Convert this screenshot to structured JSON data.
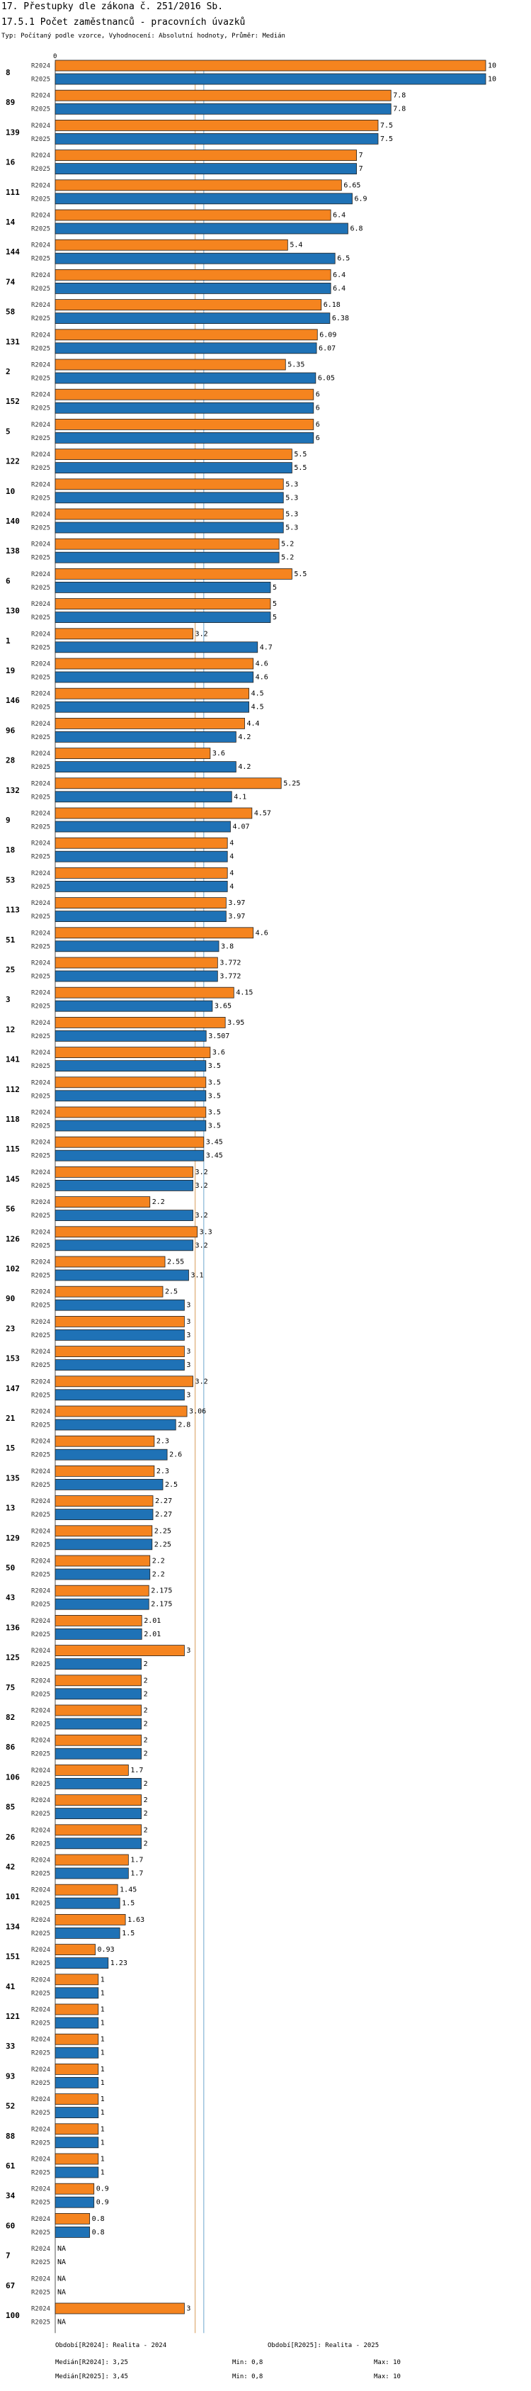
{
  "header": {
    "title_line1": "17. Přestupky dle zákona č. 251/2016 Sb.",
    "title_line2": "17.5.1 Počet zaměstnanců - pracovních úvazků",
    "subtitle": "Typ: Počítaný podle vzorce, Vyhodnocení: Absolutní hodnoty, Průměr: Medián"
  },
  "chart_data": {
    "type": "bar",
    "orientation": "horizontal",
    "axis_tick_label": "0",
    "xlim": [
      0,
      10
    ],
    "series_names": [
      "R2024",
      "R2025"
    ],
    "colors": {
      "R2024": "#f5841f",
      "R2025": "#1f72b6",
      "median_line_2024": "#e3b98b",
      "median_line_2025": "#9ec3de"
    },
    "medians": {
      "R2024": 3.25,
      "R2025": 3.45
    },
    "categories": [
      "8",
      "89",
      "139",
      "16",
      "111",
      "14",
      "144",
      "74",
      "58",
      "131",
      "2",
      "152",
      "5",
      "122",
      "10",
      "140",
      "138",
      "6",
      "130",
      "1",
      "19",
      "146",
      "96",
      "28",
      "132",
      "9",
      "18",
      "53",
      "113",
      "51",
      "25",
      "3",
      "12",
      "141",
      "112",
      "118",
      "115",
      "145",
      "56",
      "126",
      "102",
      "90",
      "23",
      "153",
      "147",
      "21",
      "15",
      "135",
      "13",
      "129",
      "50",
      "43",
      "136",
      "125",
      "75",
      "82",
      "86",
      "106",
      "85",
      "26",
      "42",
      "101",
      "134",
      "151",
      "41",
      "121",
      "33",
      "93",
      "52",
      "88",
      "61",
      "34",
      "60",
      "7",
      "67",
      "100"
    ],
    "series": [
      {
        "name": "R2024",
        "values": [
          10,
          7.8,
          7.5,
          7,
          6.65,
          6.4,
          5.4,
          6.4,
          6.18,
          6.09,
          5.35,
          6,
          6,
          5.5,
          5.3,
          5.3,
          5.2,
          5.5,
          5,
          3.2,
          4.6,
          4.5,
          4.4,
          3.6,
          5.25,
          4.57,
          4,
          4,
          3.97,
          4.6,
          3.772,
          4.15,
          3.95,
          3.6,
          3.5,
          3.5,
          3.45,
          3.2,
          2.2,
          3.3,
          2.55,
          2.5,
          3,
          3,
          3.2,
          3.06,
          2.3,
          2.3,
          2.27,
          2.25,
          2.2,
          2.175,
          2.01,
          3,
          2,
          2,
          2,
          1.7,
          2,
          2,
          1.7,
          1.45,
          1.63,
          0.93,
          1,
          1,
          1,
          1,
          1,
          1,
          1,
          0.9,
          0.8,
          null,
          null,
          3
        ],
        "labels": [
          "10",
          "7.8",
          "7.5",
          "7",
          "6.65",
          "6.4",
          "5.4",
          "6.4",
          "6.18",
          "6.09",
          "5.35",
          "6",
          "6",
          "5.5",
          "5.3",
          "5.3",
          "5.2",
          "5.5",
          "5",
          "3.2",
          "4.6",
          "4.5",
          "4.4",
          "3.6",
          "5.25",
          "4.57",
          "4",
          "4",
          "3.97",
          "4.6",
          "3.772",
          "4.15",
          "3.95",
          "3.6",
          "3.5",
          "3.5",
          "3.45",
          "3.2",
          "2.2",
          "3.3",
          "2.55",
          "2.5",
          "3",
          "3",
          "3.2",
          "3.06",
          "2.3",
          "2.3",
          "2.27",
          "2.25",
          "2.2",
          "2.175",
          "2.01",
          "3",
          "2",
          "2",
          "2",
          "1.7",
          "2",
          "2",
          "1.7",
          "1.45",
          "1.63",
          "0.93",
          "1",
          "1",
          "1",
          "1",
          "1",
          "1",
          "1",
          "0.9",
          "0.8",
          "NA",
          "NA",
          "3"
        ]
      },
      {
        "name": "R2025",
        "values": [
          10,
          7.8,
          7.5,
          7,
          6.9,
          6.8,
          6.5,
          6.4,
          6.38,
          6.07,
          6.05,
          6,
          6,
          5.5,
          5.3,
          5.3,
          5.2,
          5,
          5,
          4.7,
          4.6,
          4.5,
          4.2,
          4.2,
          4.1,
          4.07,
          4,
          4,
          3.97,
          3.8,
          3.772,
          3.65,
          3.507,
          3.5,
          3.5,
          3.5,
          3.45,
          3.2,
          3.2,
          3.2,
          3.1,
          3,
          3,
          3,
          3,
          2.8,
          2.6,
          2.5,
          2.27,
          2.25,
          2.2,
          2.175,
          2.01,
          2,
          2,
          2,
          2,
          2,
          2,
          2,
          1.7,
          1.5,
          1.5,
          1.23,
          1,
          1,
          1,
          1,
          1,
          1,
          1,
          0.9,
          0.8,
          null,
          null,
          null
        ],
        "labels": [
          "10",
          "7.8",
          "7.5",
          "7",
          "6.9",
          "6.8",
          "6.5",
          "6.4",
          "6.38",
          "6.07",
          "6.05",
          "6",
          "6",
          "5.5",
          "5.3",
          "5.3",
          "5.2",
          "5",
          "5",
          "4.7",
          "4.6",
          "4.5",
          "4.2",
          "4.2",
          "4.1",
          "4.07",
          "4",
          "4",
          "3.97",
          "3.8",
          "3.772",
          "3.65",
          "3.507",
          "3.5",
          "3.5",
          "3.5",
          "3.45",
          "3.2",
          "3.2",
          "3.2",
          "3.1",
          "3",
          "3",
          "3",
          "3",
          "2.8",
          "2.6",
          "2.5",
          "2.27",
          "2.25",
          "2.2",
          "2.175",
          "2.01",
          "2",
          "2",
          "2",
          "2",
          "2",
          "2",
          "2",
          "1.7",
          "1.5",
          "1.5",
          "1.23",
          "1",
          "1",
          "1",
          "1",
          "1",
          "1",
          "1",
          "0.9",
          "0.8",
          "NA",
          "NA",
          "NA"
        ]
      }
    ]
  },
  "footer": {
    "period_2024": "Období[R2024]: Realita - 2024",
    "period_2025": "Období[R2025]: Realita - 2025",
    "median_2024": "Medián[R2024]: 3,25",
    "median_2025": "Medián[R2025]: 3,45",
    "min_2024": "Min: 0,8",
    "min_2025": "Min: 0,8",
    "max_2024": "Max: 10",
    "max_2025": "Max: 10"
  }
}
